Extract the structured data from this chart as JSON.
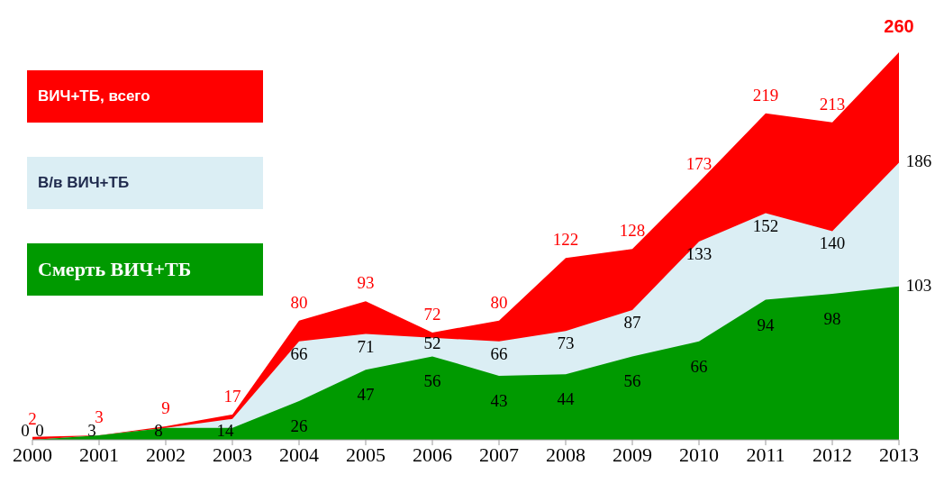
{
  "chart_data": {
    "type": "area",
    "categories": [
      "2000",
      "2001",
      "2002",
      "2003",
      "2004",
      "2005",
      "2006",
      "2007",
      "2008",
      "2009",
      "2010",
      "2011",
      "2012",
      "2013"
    ],
    "series": [
      {
        "name": "ВИЧ+ТБ, всего",
        "color": "#ff0000",
        "values": [
          2,
          3,
          9,
          17,
          80,
          93,
          72,
          80,
          122,
          128,
          173,
          219,
          213,
          260
        ],
        "value_labels": [
          "2",
          "3",
          "9",
          "17",
          "80",
          "93",
          "72",
          "80",
          "122",
          "128",
          "173",
          "219",
          "213",
          "260"
        ]
      },
      {
        "name": "В/в ВИЧ+ТБ",
        "color": "#dbeef4",
        "values": [
          0,
          3,
          8,
          14,
          66,
          71,
          null,
          66,
          73,
          87,
          133,
          152,
          140,
          186
        ],
        "value_labels": [
          "0",
          "3",
          "8",
          "14",
          "66",
          "71",
          "52",
          "66",
          "73",
          "87",
          "133",
          "152",
          "140",
          "186"
        ]
      },
      {
        "name": "Смерть ВИЧ+ТБ",
        "color": "#009a00",
        "values": [
          0,
          3,
          8,
          8,
          26,
          47,
          56,
          43,
          44,
          56,
          66,
          94,
          98,
          103
        ],
        "value_labels": [
          "0",
          null,
          null,
          null,
          "26",
          "47",
          "56",
          "43",
          "44",
          "56",
          "66",
          "94",
          "98",
          "103"
        ]
      }
    ],
    "legend": "left"
  }
}
